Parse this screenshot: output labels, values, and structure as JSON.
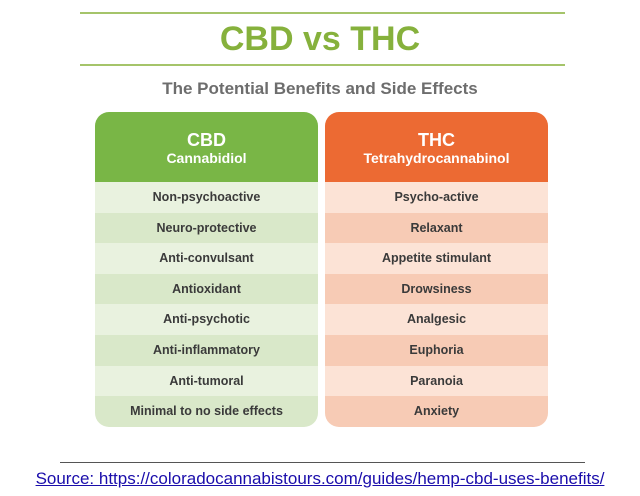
{
  "title": "CBD vs THC",
  "subtitle": "The Potential Benefits and Side Effects",
  "columns": [
    {
      "name": "CBD",
      "full_name": "Cannabidiol",
      "items": [
        "Non-psychoactive",
        "Neuro-protective",
        "Anti-convulsant",
        "Antioxidant",
        "Anti-psychotic",
        "Anti-inflammatory",
        "Anti-tumoral",
        "Minimal to no side effects"
      ]
    },
    {
      "name": "THC",
      "full_name": "Tetrahydrocannabinol",
      "items": [
        "Psycho-active",
        "Relaxant",
        "Appetite stimulant",
        "Drowsiness",
        "Analgesic",
        "Euphoria",
        "Paranoia",
        "Anxiety"
      ]
    }
  ],
  "source": "Source: https://coloradocannabistours.com/guides/hemp-cbd-uses-benefits/"
}
